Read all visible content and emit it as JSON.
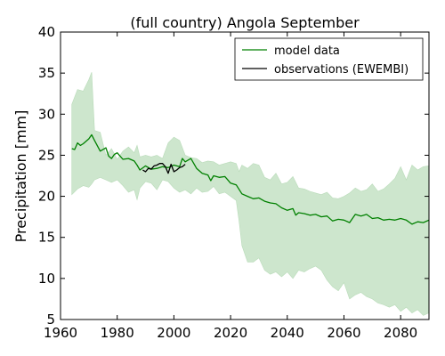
{
  "chart_data": {
    "type": "line",
    "title": "(full country) Angola September",
    "xlabel": "",
    "ylabel": "Precipitation [mm]",
    "xlim": [
      1960,
      2090
    ],
    "ylim": [
      5,
      40
    ],
    "xticks": [
      1960,
      1980,
      2000,
      2020,
      2040,
      2060,
      2080
    ],
    "yticks": [
      5,
      10,
      15,
      20,
      25,
      30,
      35,
      40
    ],
    "grid": false,
    "legend_position": "top-right",
    "band": {
      "color": "#cde6cd",
      "x": [
        1964,
        1966,
        1968,
        1970,
        1971,
        1972,
        1974,
        1976,
        1978,
        1980,
        1982,
        1984,
        1986,
        1987,
        1988,
        1990,
        1992,
        1994,
        1996,
        1998,
        2000,
        2002,
        2004,
        2006,
        2008,
        2010,
        2012,
        2014,
        2016,
        2018,
        2020,
        2022,
        2023,
        2024,
        2026,
        2028,
        2030,
        2032,
        2034,
        2036,
        2038,
        2040,
        2042,
        2044,
        2046,
        2048,
        2050,
        2052,
        2054,
        2056,
        2058,
        2060,
        2062,
        2064,
        2066,
        2068,
        2070,
        2072,
        2074,
        2076,
        2078,
        2080,
        2082,
        2084,
        2086,
        2088,
        2090
      ],
      "upper": [
        31.2,
        33.0,
        32.8,
        34.2,
        35.1,
        28.0,
        27.8,
        25.0,
        25.8,
        24.5,
        25.5,
        26.0,
        25.3,
        26.2,
        24.8,
        25.0,
        24.8,
        25.0,
        24.6,
        26.5,
        27.2,
        26.8,
        25.0,
        24.7,
        24.6,
        24.1,
        24.3,
        24.2,
        23.8,
        24.0,
        24.2,
        24.0,
        23.0,
        23.8,
        23.4,
        24.0,
        23.8,
        22.3,
        22.0,
        22.8,
        21.5,
        21.7,
        22.4,
        21.0,
        20.9,
        20.6,
        20.4,
        20.2,
        20.5,
        19.8,
        19.7,
        20.0,
        20.4,
        21.0,
        20.6,
        20.8,
        21.5,
        20.6,
        20.9,
        21.5,
        22.2,
        23.6,
        22.0,
        23.8,
        23.2,
        23.6,
        23.7
      ],
      "lower": [
        20.2,
        20.9,
        21.3,
        21.1,
        21.5,
        22.0,
        22.3,
        22.0,
        21.7,
        22.0,
        21.3,
        20.5,
        20.8,
        19.6,
        21.0,
        21.8,
        21.6,
        20.8,
        22.0,
        21.8,
        21.0,
        20.5,
        20.8,
        20.3,
        21.0,
        20.5,
        20.6,
        21.2,
        20.3,
        20.5,
        20.0,
        19.5,
        17.0,
        14.0,
        12.0,
        12.0,
        12.5,
        11.0,
        10.5,
        10.8,
        10.2,
        10.8,
        10.0,
        11.0,
        10.8,
        11.2,
        11.5,
        11.0,
        9.8,
        9.0,
        8.5,
        9.5,
        7.5,
        8.0,
        8.3,
        7.8,
        7.5,
        7.0,
        6.8,
        6.5,
        6.8,
        6.0,
        6.5,
        5.8,
        6.2,
        5.5,
        5.8
      ]
    },
    "series": [
      {
        "name": "model data",
        "color": "#008000",
        "x": [
          1964,
          1965,
          1966,
          1967,
          1968,
          1970,
          1971,
          1972,
          1974,
          1976,
          1977,
          1978,
          1979,
          1980,
          1982,
          1984,
          1986,
          1987,
          1988,
          1990,
          1992,
          1994,
          1996,
          1998,
          2000,
          2002,
          2003,
          2004,
          2006,
          2008,
          2010,
          2012,
          2013,
          2014,
          2016,
          2018,
          2020,
          2022,
          2024,
          2026,
          2028,
          2030,
          2032,
          2034,
          2036,
          2038,
          2040,
          2042,
          2043,
          2044,
          2046,
          2048,
          2050,
          2052,
          2054,
          2056,
          2058,
          2060,
          2062,
          2064,
          2066,
          2068,
          2070,
          2072,
          2074,
          2076,
          2078,
          2080,
          2082,
          2084,
          2086,
          2088,
          2090
        ],
        "values": [
          25.8,
          25.7,
          26.5,
          26.2,
          26.4,
          27.0,
          27.5,
          26.8,
          25.5,
          25.9,
          24.9,
          24.6,
          25.1,
          25.3,
          24.5,
          24.6,
          24.3,
          23.8,
          23.2,
          23.7,
          23.3,
          23.4,
          23.6,
          23.5,
          23.8,
          23.6,
          24.6,
          24.2,
          24.6,
          23.4,
          22.8,
          22.6,
          21.9,
          22.5,
          22.3,
          22.4,
          21.6,
          21.4,
          20.3,
          20.0,
          19.7,
          19.8,
          19.4,
          19.2,
          19.1,
          18.6,
          18.3,
          18.5,
          17.7,
          18.0,
          17.9,
          17.7,
          17.8,
          17.5,
          17.6,
          17.0,
          17.2,
          17.1,
          16.8,
          17.8,
          17.6,
          17.8,
          17.3,
          17.4,
          17.1,
          17.2,
          17.1,
          17.3,
          17.1,
          16.6,
          16.9,
          16.8,
          17.1
        ]
      },
      {
        "name": "observations (EWEMBI)",
        "color": "#000000",
        "x": [
          1989,
          1990,
          1991,
          1992,
          1993,
          1994,
          1995,
          1996,
          1997,
          1998,
          1999,
          2000,
          2001,
          2002,
          2003,
          2004
        ],
        "values": [
          23.2,
          23.0,
          23.4,
          23.3,
          23.7,
          23.8,
          24.0,
          24.0,
          23.6,
          22.8,
          23.9,
          23.0,
          23.2,
          23.5,
          23.6,
          23.9
        ]
      }
    ]
  }
}
